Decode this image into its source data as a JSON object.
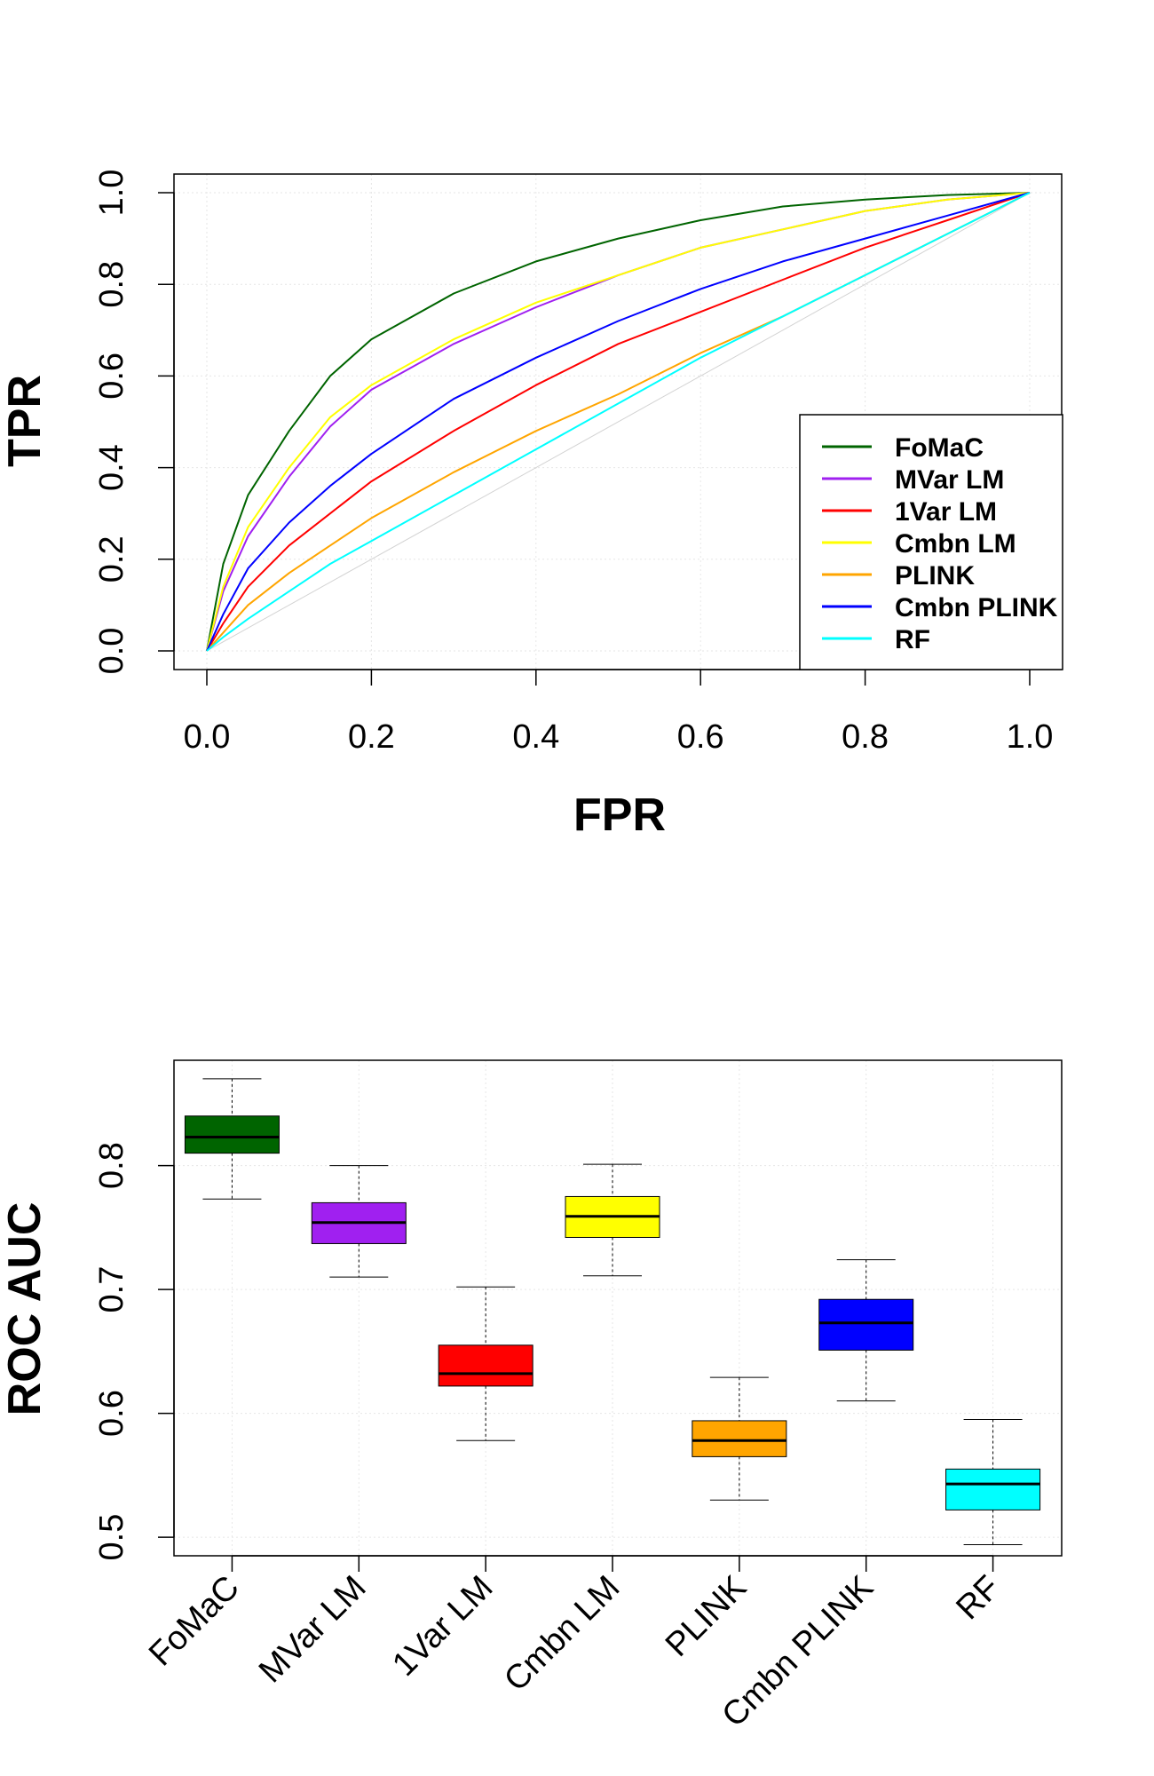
{
  "chart_data": [
    {
      "type": "line",
      "xlabel": "FPR",
      "ylabel": "TPR",
      "xlim": [
        0.0,
        1.0
      ],
      "ylim": [
        0.0,
        1.0
      ],
      "x_ticks": [
        "0.0",
        "0.2",
        "0.4",
        "0.6",
        "0.8",
        "1.0"
      ],
      "y_ticks": [
        "0.0",
        "0.2",
        "0.4",
        "0.6",
        "0.8",
        "1.0"
      ],
      "grid": true,
      "legend_position": "bottom-right",
      "reference_line": {
        "x": [
          0,
          1
        ],
        "y": [
          0,
          1
        ],
        "color": "#d3d3d3"
      },
      "series": [
        {
          "name": "FoMaC",
          "color": "#006400",
          "x": [
            0,
            0.02,
            0.05,
            0.1,
            0.15,
            0.2,
            0.3,
            0.4,
            0.5,
            0.6,
            0.7,
            0.8,
            0.9,
            1.0
          ],
          "y": [
            0,
            0.19,
            0.34,
            0.48,
            0.6,
            0.68,
            0.78,
            0.85,
            0.9,
            0.94,
            0.97,
            0.985,
            0.995,
            1.0
          ]
        },
        {
          "name": "MVar LM",
          "color": "#a020f0",
          "x": [
            0,
            0.02,
            0.05,
            0.1,
            0.15,
            0.2,
            0.3,
            0.4,
            0.5,
            0.6,
            0.7,
            0.8,
            0.9,
            1.0
          ],
          "y": [
            0,
            0.13,
            0.25,
            0.38,
            0.49,
            0.57,
            0.67,
            0.75,
            0.82,
            0.88,
            0.92,
            0.96,
            0.985,
            1.0
          ]
        },
        {
          "name": "1Var LM",
          "color": "#ff0000",
          "x": [
            0,
            0.02,
            0.05,
            0.1,
            0.15,
            0.2,
            0.3,
            0.4,
            0.5,
            0.6,
            0.7,
            0.8,
            0.9,
            1.0
          ],
          "y": [
            0,
            0.06,
            0.14,
            0.23,
            0.3,
            0.37,
            0.48,
            0.58,
            0.67,
            0.74,
            0.81,
            0.88,
            0.94,
            1.0
          ]
        },
        {
          "name": "Cmbn LM",
          "color": "#ffff00",
          "x": [
            0,
            0.02,
            0.05,
            0.1,
            0.15,
            0.2,
            0.3,
            0.4,
            0.5,
            0.6,
            0.7,
            0.8,
            0.9,
            1.0
          ],
          "y": [
            0,
            0.14,
            0.27,
            0.4,
            0.51,
            0.58,
            0.68,
            0.76,
            0.82,
            0.88,
            0.92,
            0.96,
            0.985,
            1.0
          ]
        },
        {
          "name": "PLINK",
          "color": "#ffa500",
          "x": [
            0,
            0.02,
            0.05,
            0.1,
            0.15,
            0.2,
            0.3,
            0.4,
            0.5,
            0.6,
            0.7,
            0.8,
            0.9,
            1.0
          ],
          "y": [
            0,
            0.04,
            0.1,
            0.17,
            0.23,
            0.29,
            0.39,
            0.48,
            0.56,
            0.65,
            0.73,
            0.82,
            0.91,
            1.0
          ]
        },
        {
          "name": "Cmbn PLINK",
          "color": "#0000ff",
          "x": [
            0,
            0.02,
            0.05,
            0.1,
            0.15,
            0.2,
            0.3,
            0.4,
            0.5,
            0.6,
            0.7,
            0.8,
            0.9,
            1.0
          ],
          "y": [
            0,
            0.08,
            0.18,
            0.28,
            0.36,
            0.43,
            0.55,
            0.64,
            0.72,
            0.79,
            0.85,
            0.9,
            0.95,
            1.0
          ]
        },
        {
          "name": "RF",
          "color": "#00ffff",
          "x": [
            0,
            0.02,
            0.05,
            0.1,
            0.15,
            0.2,
            0.3,
            0.4,
            0.5,
            0.6,
            0.7,
            0.8,
            0.9,
            1.0
          ],
          "y": [
            0,
            0.03,
            0.07,
            0.13,
            0.19,
            0.24,
            0.34,
            0.44,
            0.54,
            0.64,
            0.73,
            0.82,
            0.91,
            1.0
          ]
        }
      ]
    },
    {
      "type": "box",
      "ylabel": "ROC AUC",
      "ylim": [
        0.485,
        0.885
      ],
      "y_ticks": [
        "0.5",
        "0.6",
        "0.7",
        "0.8"
      ],
      "grid": true,
      "categories": [
        "FoMaC",
        "MVar LM",
        "1Var LM",
        "Cmbn LM",
        "PLINK",
        "Cmbn PLINK",
        "RF"
      ],
      "boxes": [
        {
          "name": "FoMaC",
          "color": "#006400",
          "whisker_low": 0.773,
          "q1": 0.81,
          "median": 0.823,
          "q3": 0.84,
          "whisker_high": 0.87
        },
        {
          "name": "MVar LM",
          "color": "#a020f0",
          "whisker_low": 0.71,
          "q1": 0.737,
          "median": 0.754,
          "q3": 0.77,
          "whisker_high": 0.8
        },
        {
          "name": "1Var LM",
          "color": "#ff0000",
          "whisker_low": 0.578,
          "q1": 0.622,
          "median": 0.632,
          "q3": 0.655,
          "whisker_high": 0.702
        },
        {
          "name": "Cmbn LM",
          "color": "#ffff00",
          "whisker_low": 0.711,
          "q1": 0.742,
          "median": 0.759,
          "q3": 0.775,
          "whisker_high": 0.801
        },
        {
          "name": "PLINK",
          "color": "#ffa500",
          "whisker_low": 0.53,
          "q1": 0.565,
          "median": 0.578,
          "q3": 0.594,
          "whisker_high": 0.629
        },
        {
          "name": "Cmbn PLINK",
          "color": "#0000ff",
          "whisker_low": 0.61,
          "q1": 0.651,
          "median": 0.673,
          "q3": 0.692,
          "whisker_high": 0.724
        },
        {
          "name": "RF",
          "color": "#00ffff",
          "whisker_low": 0.494,
          "q1": 0.522,
          "median": 0.543,
          "q3": 0.555,
          "whisker_high": 0.595
        }
      ]
    }
  ]
}
